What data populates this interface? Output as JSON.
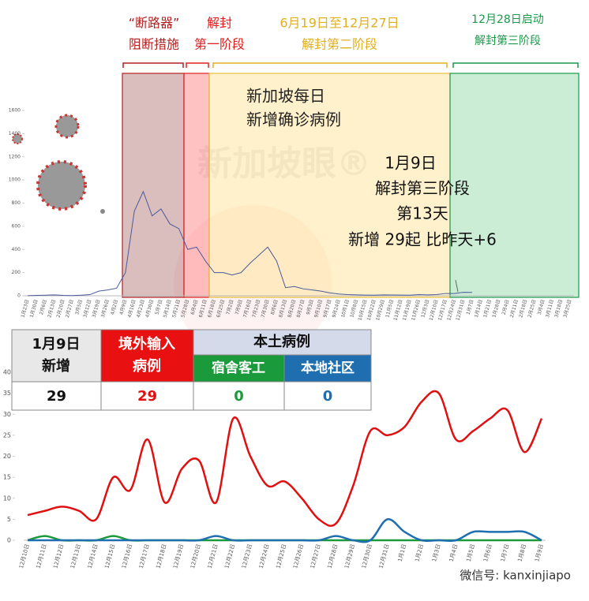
{
  "phases": [
    {
      "lines": [
        "“断路器”",
        "阻断措施"
      ],
      "color": "#b22222"
    },
    {
      "lines": [
        "解封",
        "第一阶段"
      ],
      "color": "#e02020"
    },
    {
      "lines": [
        "6月19日至12月27日",
        "解封第二阶段"
      ],
      "color": "#e0b020"
    },
    {
      "lines": [
        "12月28日启动",
        "解封第三阶段"
      ],
      "color": "#1a9a4a"
    }
  ],
  "chart_data": [
    {
      "type": "line",
      "title": [
        "新加坡每日",
        "新增确诊病例"
      ],
      "categories": [
        "1月23日",
        "1月30日",
        "2月6日",
        "2月13日",
        "2月20日",
        "2月27日",
        "3月5日",
        "3月12日",
        "3月19日",
        "3月26日",
        "4月2日",
        "4月9日",
        "4月16日",
        "4月23日",
        "4月30日",
        "5月7日",
        "5月14日",
        "5月21日",
        "5月28日",
        "6月4日",
        "6月11日",
        "6月18日",
        "6月25日",
        "7月2日",
        "7月9日",
        "7月16日",
        "7月23日",
        "7月30日",
        "8月6日",
        "8月13日",
        "8月20日",
        "8月27日",
        "9月3日",
        "9月10日",
        "9月17日",
        "9月24日",
        "10月1日",
        "10月8日",
        "10月15日",
        "10月22日",
        "10月29日",
        "11月5日",
        "11月12日",
        "11月19日",
        "11月26日",
        "12月3日",
        "12月10日",
        "12月17日",
        "12月24日",
        "12月31日",
        "1月7日",
        "1月14日",
        "1月21日",
        "1月28日",
        "2月4日",
        "2月11日",
        "2月18日",
        "2月25日",
        "3月4日",
        "3月11日",
        "3月18日",
        "3月25日"
      ],
      "series": [
        {
          "color": "#4a5a9a",
          "values": [
            1,
            3,
            5,
            8,
            3,
            2,
            5,
            10,
            40,
            50,
            65,
            200,
            730,
            900,
            690,
            750,
            620,
            580,
            400,
            420,
            300,
            200,
            200,
            180,
            200,
            280,
            350,
            420,
            300,
            70,
            80,
            60,
            50,
            40,
            25,
            15,
            10,
            8,
            6,
            5,
            8,
            7,
            6,
            5,
            10,
            8,
            10,
            20,
            20,
            30,
            29,
            null,
            null,
            null,
            null,
            null,
            null,
            null,
            null,
            null,
            null,
            null
          ]
        }
      ],
      "ylim": [
        0,
        1600
      ],
      "yticks": [
        0,
        200,
        400,
        600,
        800,
        1000,
        1200,
        1400,
        1600
      ]
    },
    {
      "type": "line",
      "categories": [
        "12月10日",
        "12月11日",
        "12月12日",
        "12月13日",
        "12月14日",
        "12月15日",
        "12月16日",
        "12月17日",
        "12月18日",
        "12月19日",
        "12月20日",
        "12月21日",
        "12月22日",
        "12月23日",
        "12月24日",
        "12月25日",
        "12月26日",
        "12月27日",
        "12月28日",
        "12月29日",
        "12月30日",
        "12月31日",
        "1月1日",
        "1月2日",
        "1月3日",
        "1月4日",
        "1月5日",
        "1月6日",
        "1月7日",
        "1月8日",
        "1月9日"
      ],
      "series": [
        {
          "color": "#e01010",
          "values": [
            6,
            7,
            8,
            7,
            5,
            15,
            12,
            24,
            9,
            17,
            19,
            9,
            29,
            20,
            13,
            14,
            10,
            5,
            4,
            13,
            26,
            25,
            27,
            33,
            35,
            24,
            26,
            29,
            31,
            21,
            29
          ]
        },
        {
          "color": "#1a9a3a",
          "values": [
            0,
            1,
            0,
            0,
            0,
            1,
            0,
            0,
            0,
            0,
            0,
            0,
            0,
            0,
            0,
            0,
            0,
            0,
            0,
            0,
            0,
            0,
            0,
            0,
            0,
            0,
            0,
            0,
            0,
            0,
            0
          ]
        },
        {
          "color": "#1f6fb0",
          "values": [
            0,
            0,
            0,
            0,
            0,
            0,
            0,
            0,
            0,
            0,
            0,
            1,
            0,
            0,
            0,
            0,
            0,
            0,
            1,
            0,
            0,
            5,
            2,
            0,
            0,
            0,
            2,
            2,
            2,
            2,
            0
          ]
        }
      ],
      "ylim": [
        0,
        40
      ],
      "yticks": [
        0,
        5,
        10,
        15,
        20,
        25,
        30,
        35,
        40
      ]
    }
  ],
  "callout": [
    "1月9日",
    "解封第三阶段",
    "第13天",
    "新增 29起  比昨天+6"
  ],
  "table": {
    "date_header": [
      "1月9日",
      "新增"
    ],
    "imported_header": [
      "境外输入",
      "病例"
    ],
    "local_header": "本土病例",
    "dorm_header": "宿舍客工",
    "community_header": "本地社区",
    "values": [
      29,
      29,
      0,
      0
    ]
  },
  "watermark": "新加坡眼®",
  "footer": "微信号: kanxinjiapo"
}
